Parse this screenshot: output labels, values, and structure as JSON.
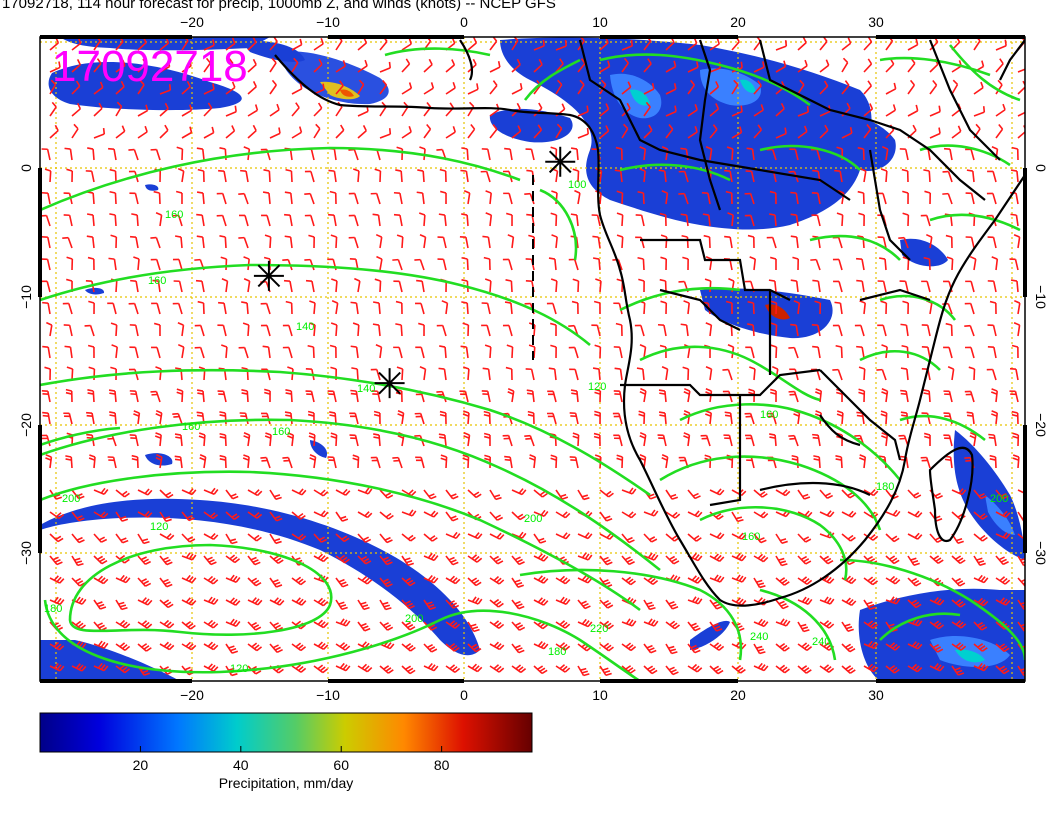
{
  "title": "17092718, 114 hour forecast for precip, 1000mb Z, and winds (knots) -- NCEP GFS",
  "stamp": "17092718",
  "axes": {
    "x_ticks": [
      "−20",
      "−10",
      "0",
      "10",
      "20",
      "30"
    ],
    "x_tick_values": [
      -20,
      -10,
      0,
      10,
      20,
      30
    ],
    "y_ticks_left": [
      "0",
      "−10",
      "−20",
      "−30"
    ],
    "y_ticks_right": [
      "0",
      "−10",
      "−20",
      "−30"
    ],
    "y_tick_values": [
      0,
      -10,
      -20,
      -30
    ],
    "lon_range": [
      -31,
      40
    ],
    "lat_range": [
      -38.5,
      9.5
    ]
  },
  "colors": {
    "contour": "#22dd22",
    "wind_barb": "#ff1a1a",
    "coast": "#000000",
    "gridline": "#e6c300",
    "stamp": "#ff00ff"
  },
  "contour_labels": [
    "100",
    "160",
    "160",
    "140",
    "120",
    "140",
    "160",
    "160",
    "200",
    "120",
    "180",
    "180",
    "200",
    "200",
    "220",
    "240",
    "240",
    "180",
    "160",
    "120",
    "160",
    "200"
  ],
  "colorbar": {
    "label": "Precipitation, mm/day",
    "ticks": [
      "20",
      "40",
      "60",
      "80"
    ],
    "tick_values": [
      20,
      40,
      60,
      80
    ],
    "range": [
      0,
      98
    ]
  },
  "markers": [
    {
      "name": "star-1",
      "lon": 6.5,
      "lat": 0.2
    },
    {
      "name": "star-2",
      "lon": -14.5,
      "lat": -8.3
    },
    {
      "name": "star-3",
      "lon": -5.8,
      "lat": -16.3
    }
  ]
}
